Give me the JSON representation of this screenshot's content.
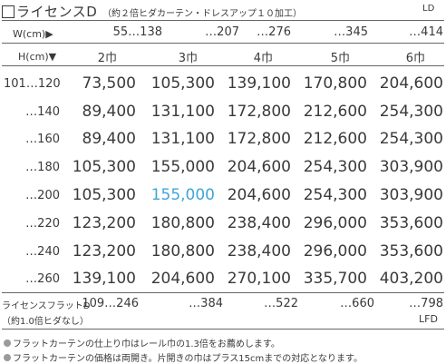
{
  "header": {
    "title": "ライセンスD",
    "subtitle": "（約２倍ヒダカーテン・ドレスアップ１０加工）",
    "code": "LD"
  },
  "table": {
    "width_label": "W(cm)▶",
    "width_ranges": [
      "55…138",
      "…207",
      "…276",
      "…345",
      "…414"
    ],
    "height_label": "H(cm)▼",
    "panel_sizes": [
      "2巾",
      "3巾",
      "4巾",
      "5巾",
      "6巾"
    ],
    "rows": [
      {
        "height": "101…120",
        "prices": [
          "73,500",
          "105,300",
          "139,100",
          "170,800",
          "204,600"
        ]
      },
      {
        "height": "…140",
        "prices": [
          "89,400",
          "131,100",
          "172,800",
          "212,600",
          "254,300"
        ]
      },
      {
        "height": "…160",
        "prices": [
          "89,400",
          "131,100",
          "172,800",
          "212,600",
          "254,300"
        ]
      },
      {
        "height": "…180",
        "prices": [
          "105,300",
          "155,000",
          "204,600",
          "254,300",
          "303,900"
        ]
      },
      {
        "height": "…200",
        "prices": [
          "105,300",
          "155,000",
          "204,600",
          "254,300",
          "303,900"
        ]
      },
      {
        "height": "…220",
        "prices": [
          "123,200",
          "180,800",
          "238,400",
          "296,000",
          "353,600"
        ]
      },
      {
        "height": "…240",
        "prices": [
          "123,200",
          "180,800",
          "238,400",
          "296,000",
          "353,600"
        ]
      },
      {
        "height": "…260",
        "prices": [
          "139,100",
          "204,600",
          "270,100",
          "335,700",
          "403,200"
        ]
      }
    ],
    "highlight_color": "#3fa6d8"
  },
  "flat": {
    "label_line1": "ライセンスフラットD",
    "label_line2": "（約1.0倍ヒダなし）",
    "width_ranges": [
      "109…246",
      "…384",
      "…522",
      "…660",
      "…798"
    ],
    "code": "LFD"
  },
  "notes": [
    "フラットカーテンの仕上り巾はレール巾の1.3倍をお薦めします。",
    "フラットカーテンの価格は両開き。片開きの巾はプラス15cmまでの対応となります。"
  ]
}
